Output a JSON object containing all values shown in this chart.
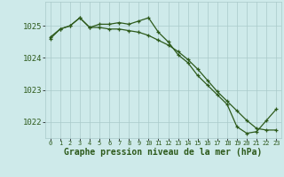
{
  "title": "Graphe pression niveau de la mer (hPa)",
  "x": [
    0,
    1,
    2,
    3,
    4,
    5,
    6,
    7,
    8,
    9,
    10,
    11,
    12,
    13,
    14,
    15,
    16,
    17,
    18,
    19,
    20,
    21,
    22,
    23
  ],
  "line1": [
    1024.65,
    1024.9,
    1025.0,
    1025.25,
    1024.95,
    1025.05,
    1025.05,
    1025.1,
    1025.05,
    1025.15,
    1025.25,
    1024.8,
    1024.5,
    1024.1,
    1023.85,
    1023.45,
    1023.15,
    1022.85,
    1022.55,
    1021.85,
    1021.65,
    1021.7,
    1022.05,
    1022.4
  ],
  "line2": [
    1024.6,
    1024.9,
    1025.0,
    1025.25,
    1024.95,
    1024.95,
    1024.9,
    1024.9,
    1024.85,
    1024.8,
    1024.7,
    1024.55,
    1024.4,
    1024.2,
    1023.95,
    1023.65,
    1023.3,
    1022.95,
    1022.65,
    1022.35,
    1022.05,
    1021.8,
    1021.75,
    1021.75
  ],
  "line_color": "#2d5a1b",
  "bg_color": "#ceeaea",
  "grid_color": "#aacaca",
  "ylim": [
    1021.5,
    1025.75
  ],
  "yticks": [
    1022,
    1023,
    1024,
    1025
  ],
  "marker": "+"
}
